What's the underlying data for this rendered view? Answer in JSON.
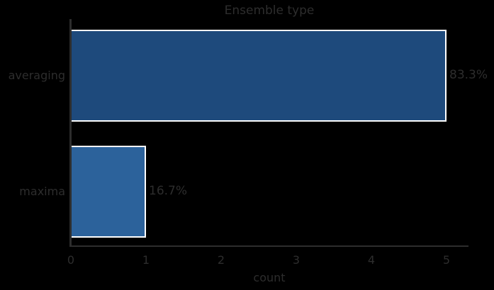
{
  "chart_data": {
    "type": "bar",
    "orientation": "horizontal",
    "title": "Ensemble type",
    "xlabel": "count",
    "ylabel": "",
    "categories": [
      "averaging",
      "maxima"
    ],
    "values": [
      5,
      1
    ],
    "bar_labels": [
      "83.3%",
      "16.7%"
    ],
    "xticks": [
      "0",
      "1",
      "2",
      "3",
      "4",
      "5"
    ],
    "xlim": [
      0,
      5.3
    ],
    "grid": false,
    "legend": null,
    "colors": {
      "bars": [
        "#1e4a7c",
        "#2c629b"
      ],
      "bar_edge": "#ffffff",
      "text": "#2d2d2d",
      "spine": "#2d2d2d",
      "background": "#000000"
    }
  }
}
